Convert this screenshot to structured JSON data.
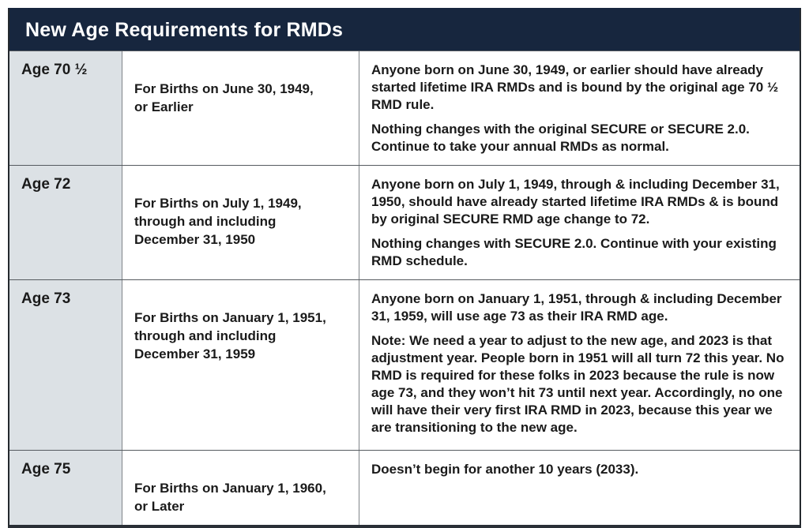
{
  "header": {
    "title": "New Age Requirements for RMDs"
  },
  "colors": {
    "header_bg": "#17263E",
    "age_col_bg": "#DCE1E5",
    "border_dark": "#24292E",
    "grid_line": "#565B60",
    "text": "#1A1A1A"
  },
  "table": {
    "columns": [
      "age",
      "birth-range",
      "details"
    ],
    "rows": [
      {
        "age": "Age 70 ½",
        "births": "For Births on June 30, 1949,\nor Earlier",
        "paragraphs": [
          "Anyone born on June 30, 1949, or earlier should have already started lifetime IRA RMDs and is bound by the original age 70 ½ RMD rule.",
          "Nothing changes with the original SECURE or SECURE 2.0. Continue to take your annual RMDs as normal."
        ]
      },
      {
        "age": "Age 72",
        "births": "For Births on July 1, 1949,\nthrough and including\nDecember 31, 1950",
        "paragraphs": [
          "Anyone born on July 1, 1949, through & including December 31, 1950, should have already started lifetime IRA RMDs & is bound by original SECURE RMD age change to 72.",
          "Nothing changes with SECURE 2.0. Continue with your existing RMD schedule."
        ]
      },
      {
        "age": "Age 73",
        "births": "For Births on January 1, 1951,\nthrough and including\nDecember 31, 1959",
        "paragraphs": [
          "Anyone born on January 1, 1951, through & including December 31, 1959, will use age 73 as their IRA RMD age.",
          "Note: We need a year to adjust to the new age, and 2023 is that adjustment year. People born in 1951 will all turn 72 this year. No RMD is required for these folks in 2023 because the rule is now age 73, and they won’t hit 73 until next year. Accordingly, no one will have their very first IRA RMD in 2023, because this year we are transitioning to the new age."
        ]
      },
      {
        "age": "Age 75",
        "births": "For Births on January 1, 1960,\nor Later",
        "paragraphs": [
          "Doesn’t begin for another 10 years (2033)."
        ]
      }
    ]
  }
}
